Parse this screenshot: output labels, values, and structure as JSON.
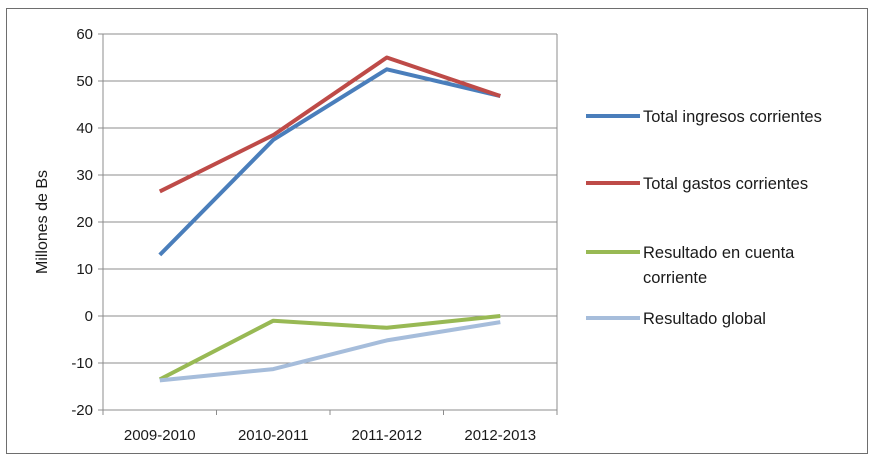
{
  "chart_data": {
    "type": "line",
    "categories": [
      "2009-2010",
      "2010-2011",
      "2011-2012",
      "2012-2013"
    ],
    "ylabel": "Millones de Bs",
    "ylim": [
      -20,
      60
    ],
    "yticks": [
      60,
      50,
      40,
      30,
      20,
      10,
      0,
      -10,
      -20
    ],
    "grid": true,
    "legend_position": "right",
    "series": [
      {
        "name": "Total ingresos corrientes",
        "color": "#4a7ebb",
        "values": [
          13,
          37.5,
          52.5,
          46.8
        ]
      },
      {
        "name": "Total gastos corrientes",
        "color": "#be4b48",
        "values": [
          26.5,
          38.5,
          55,
          46.8
        ]
      },
      {
        "name": "Resultado en cuenta corriente",
        "legend_lines": [
          "Resultado en cuenta",
          "corriente"
        ],
        "color": "#98b954",
        "values": [
          -13.5,
          -1,
          -2.5,
          0
        ]
      },
      {
        "name": "Resultado global",
        "color": "#a6bddb",
        "values": [
          -13.7,
          -11.3,
          -5.2,
          -1.3
        ]
      }
    ]
  }
}
